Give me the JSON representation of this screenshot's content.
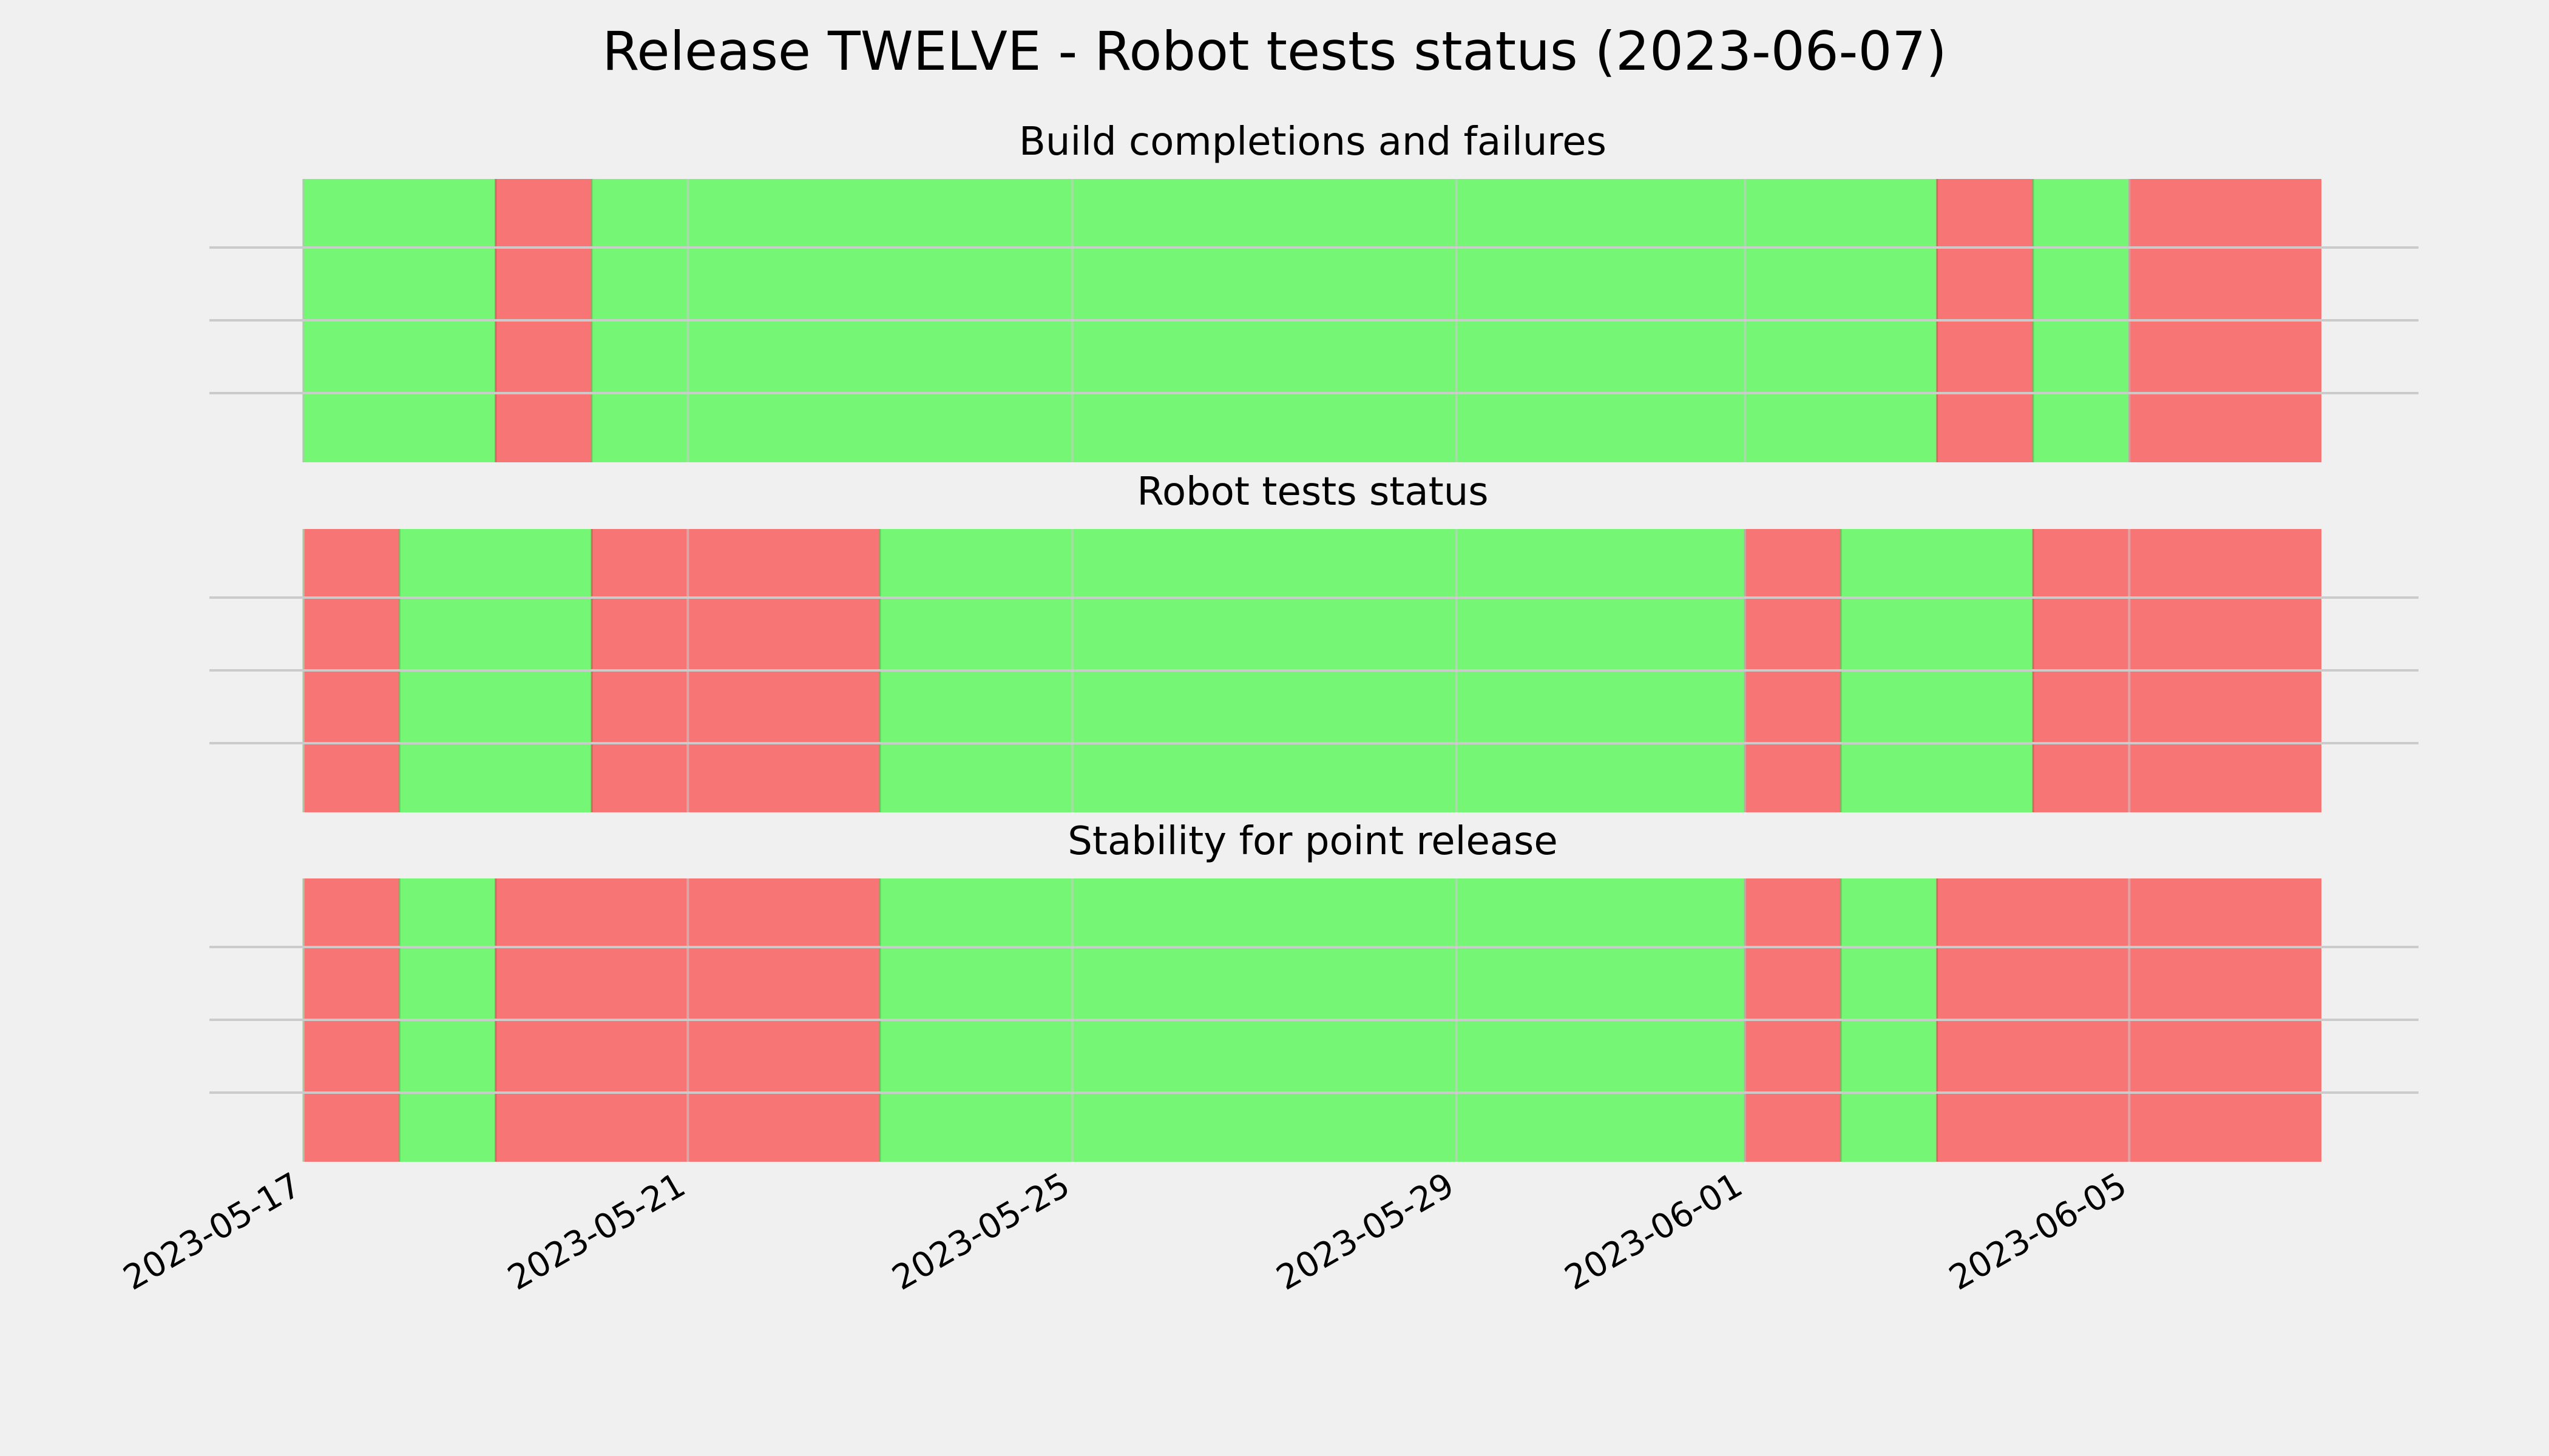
{
  "chart_data": {
    "type": "broken_barh",
    "title": "Release TWELVE - Robot tests status (2023-06-07)",
    "x_range": [
      "2023-05-17",
      "2023-06-07"
    ],
    "x_ticks": [
      "2023-05-17",
      "2023-05-21",
      "2023-05-25",
      "2023-05-29",
      "2023-06-01",
      "2023-06-05"
    ],
    "grid": true,
    "colors": {
      "pass": "#75f775",
      "fail": "#f77575",
      "background": "#f0f0f0"
    },
    "panels": [
      {
        "title": "Build completions and failures",
        "segments": [
          {
            "start": "2023-05-17",
            "end": "2023-05-19",
            "status": "pass"
          },
          {
            "start": "2023-05-19",
            "end": "2023-05-20",
            "status": "fail"
          },
          {
            "start": "2023-05-20",
            "end": "2023-06-03",
            "status": "pass"
          },
          {
            "start": "2023-06-03",
            "end": "2023-06-04",
            "status": "fail"
          },
          {
            "start": "2023-06-04",
            "end": "2023-06-05",
            "status": "pass"
          },
          {
            "start": "2023-06-05",
            "end": "2023-06-07",
            "status": "fail"
          }
        ]
      },
      {
        "title": "Robot tests status",
        "segments": [
          {
            "start": "2023-05-17",
            "end": "2023-05-18",
            "status": "fail"
          },
          {
            "start": "2023-05-18",
            "end": "2023-05-20",
            "status": "pass"
          },
          {
            "start": "2023-05-20",
            "end": "2023-05-23",
            "status": "fail"
          },
          {
            "start": "2023-05-23",
            "end": "2023-06-01",
            "status": "pass"
          },
          {
            "start": "2023-06-01",
            "end": "2023-06-02",
            "status": "fail"
          },
          {
            "start": "2023-06-02",
            "end": "2023-06-04",
            "status": "pass"
          },
          {
            "start": "2023-06-04",
            "end": "2023-06-07",
            "status": "fail"
          }
        ]
      },
      {
        "title": "Stability for point release",
        "segments": [
          {
            "start": "2023-05-17",
            "end": "2023-05-18",
            "status": "fail"
          },
          {
            "start": "2023-05-18",
            "end": "2023-05-19",
            "status": "pass"
          },
          {
            "start": "2023-05-19",
            "end": "2023-05-23",
            "status": "fail"
          },
          {
            "start": "2023-05-23",
            "end": "2023-06-01",
            "status": "pass"
          },
          {
            "start": "2023-06-01",
            "end": "2023-06-02",
            "status": "fail"
          },
          {
            "start": "2023-06-02",
            "end": "2023-06-03",
            "status": "pass"
          },
          {
            "start": "2023-06-03",
            "end": "2023-06-07",
            "status": "fail"
          }
        ]
      }
    ]
  }
}
